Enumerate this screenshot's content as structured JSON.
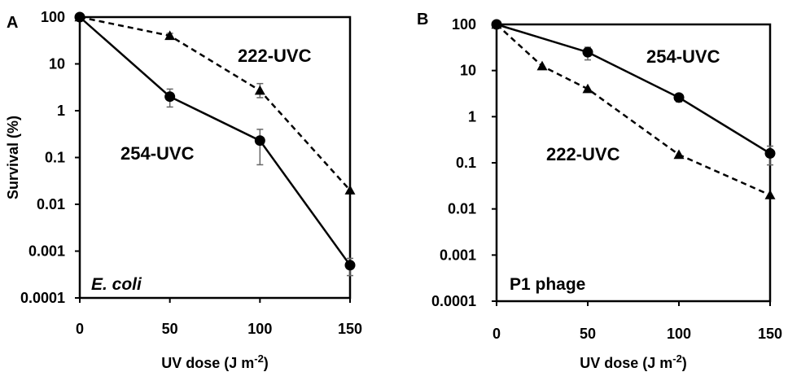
{
  "chart_data": [
    {
      "type": "line",
      "panel": "A",
      "organism": "E. coli",
      "organism_italic": true,
      "xlabel": "UV dose (J m",
      "xlabel_sup": "-2",
      "xlabel_close": ")",
      "ylabel": "Survival (%)",
      "xlim": [
        0,
        150
      ],
      "ylim": [
        0.0001,
        100
      ],
      "yscale": "log",
      "xticks": [
        "0",
        "50",
        "100",
        "150"
      ],
      "yticks": [
        "100",
        "10",
        "1",
        "0.1",
        "0.01",
        "0.001",
        "0.0001"
      ],
      "grid": false,
      "series": [
        {
          "name": "254-UVC",
          "style": "solid",
          "marker": "circle",
          "x": [
            0,
            50,
            100,
            150
          ],
          "y": [
            100,
            2,
            0.23,
            0.0005
          ],
          "err_low": [
            100,
            1.2,
            0.07,
            0.0003
          ],
          "err_high": [
            100,
            2.9,
            0.4,
            0.0007
          ]
        },
        {
          "name": "222-UVC",
          "style": "dashed",
          "marker": "triangle",
          "x": [
            0,
            50,
            100,
            150
          ],
          "y": [
            100,
            40,
            2.7,
            0.02
          ],
          "err_low": [
            100,
            35,
            1.9,
            0.02
          ],
          "err_high": [
            100,
            45,
            3.8,
            0.02
          ]
        }
      ]
    },
    {
      "type": "line",
      "panel": "B",
      "organism": "P1 phage",
      "organism_italic": false,
      "xlabel": "UV dose (J m",
      "xlabel_sup": "-2",
      "xlabel_close": ")",
      "ylabel": "",
      "xlim": [
        0,
        150
      ],
      "ylim": [
        0.0001,
        100
      ],
      "yscale": "log",
      "xticks": [
        "0",
        "50",
        "100",
        "150"
      ],
      "yticks": [
        "100",
        "10",
        "1",
        "0.1",
        "0.01",
        "0.001",
        "0.0001"
      ],
      "grid": false,
      "series": [
        {
          "name": "254-UVC",
          "style": "solid",
          "marker": "circle",
          "x": [
            0,
            50,
            100,
            150
          ],
          "y": [
            100,
            25,
            2.6,
            0.16
          ],
          "err_low": [
            100,
            17,
            2.1,
            0.09
          ],
          "err_high": [
            100,
            32,
            3.1,
            0.23
          ]
        },
        {
          "name": "222-UVC",
          "style": "dashed",
          "marker": "triangle",
          "x": [
            0,
            25,
            50,
            100,
            150
          ],
          "y": [
            100,
            12.5,
            4,
            0.15,
            0.02
          ],
          "err_low": [
            100,
            12.5,
            4,
            0.15,
            0.02
          ],
          "err_high": [
            100,
            12.5,
            4,
            0.15,
            0.02
          ]
        }
      ]
    }
  ]
}
